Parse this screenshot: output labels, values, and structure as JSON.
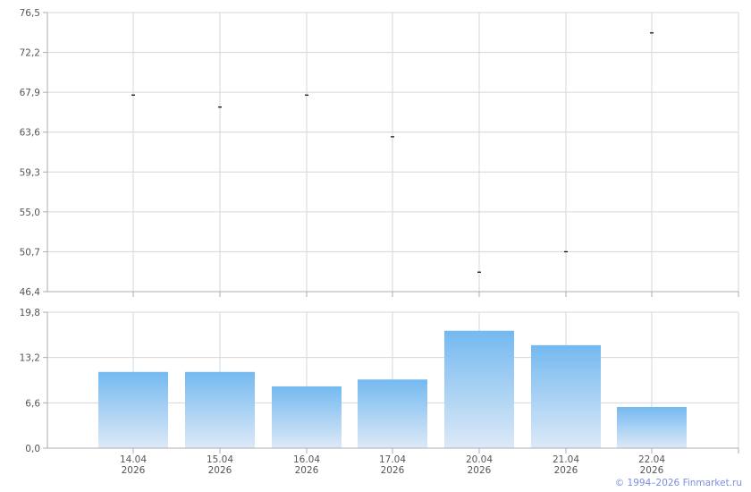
{
  "chart_data": [
    {
      "type": "scatter",
      "marker": "dash",
      "categories": [
        "14.04 2026",
        "15.04 2026",
        "16.04 2026",
        "17.04 2026",
        "20.04 2026",
        "21.04 2026",
        "22.04 2026"
      ],
      "values": [
        67.6,
        66.3,
        67.6,
        63.1,
        48.5,
        50.7,
        74.3
      ],
      "ylim": [
        46.4,
        76.5
      ],
      "yticks": [
        "76,5",
        "72,2",
        "67,9",
        "63,6",
        "59,3",
        "55,0",
        "50,7",
        "46,4"
      ],
      "grid": true,
      "marker_color": "#000000"
    },
    {
      "type": "bar",
      "categories": [
        "14.04 2026",
        "15.04 2026",
        "16.04 2026",
        "17.04 2026",
        "20.04 2026",
        "21.04 2026",
        "22.04 2026"
      ],
      "values": [
        11.1,
        11.1,
        9.0,
        10.0,
        17.1,
        15.0,
        6.0
      ],
      "ylim": [
        0,
        19.8
      ],
      "yticks": [
        "19,8",
        "13,2",
        "6,6",
        "0,0"
      ],
      "grid": true,
      "bar_color_top": "#74b9f0",
      "bar_color_bottom": "#dde9f7"
    }
  ],
  "xlabels": [
    {
      "date": "14.04",
      "year": "2026"
    },
    {
      "date": "15.04",
      "year": "2026"
    },
    {
      "date": "16.04",
      "year": "2026"
    },
    {
      "date": "17.04",
      "year": "2026"
    },
    {
      "date": "20.04",
      "year": "2026"
    },
    {
      "date": "21.04",
      "year": "2026"
    },
    {
      "date": "22.04",
      "year": "2026"
    }
  ],
  "copyright": "© 1994–2026 Finmarket.ru"
}
